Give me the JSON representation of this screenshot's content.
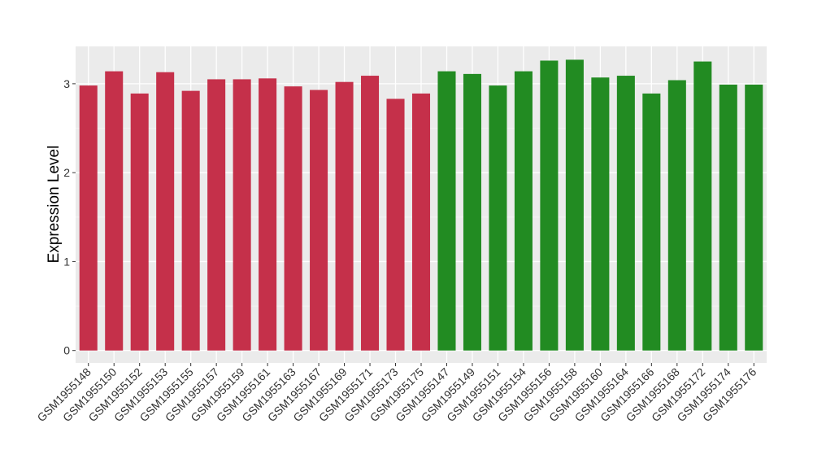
{
  "chart_data": {
    "type": "bar",
    "xlabel": "",
    "ylabel": "Expression Level",
    "ylim": [
      -0.14,
      3.42
    ],
    "yticks": [
      0,
      1,
      2,
      3
    ],
    "grid": true,
    "legend": "none",
    "panel_background": "#EBEBEB",
    "categories": [
      "GSM1955148",
      "GSM1955150",
      "GSM1955152",
      "GSM1955153",
      "GSM1955155",
      "GSM1955157",
      "GSM1955159",
      "GSM1955161",
      "GSM1955163",
      "GSM1955167",
      "GSM1955169",
      "GSM1955171",
      "GSM1955173",
      "GSM1955175",
      "GSM1955147",
      "GSM1955149",
      "GSM1955151",
      "GSM1955154",
      "GSM1955156",
      "GSM1955158",
      "GSM1955160",
      "GSM1955164",
      "GSM1955166",
      "GSM1955168",
      "GSM1955172",
      "GSM1955174",
      "GSM1955176"
    ],
    "values": [
      2.98,
      3.14,
      2.89,
      3.13,
      2.92,
      3.05,
      3.05,
      3.06,
      2.97,
      2.93,
      3.02,
      3.09,
      2.83,
      2.89,
      3.14,
      3.11,
      2.98,
      3.14,
      3.26,
      3.27,
      3.07,
      3.09,
      2.89,
      3.04,
      3.25,
      2.99,
      2.99
    ],
    "groups": [
      {
        "color": "#C5304A",
        "count": 14
      },
      {
        "color": "#228B22",
        "count": 13
      }
    ]
  }
}
